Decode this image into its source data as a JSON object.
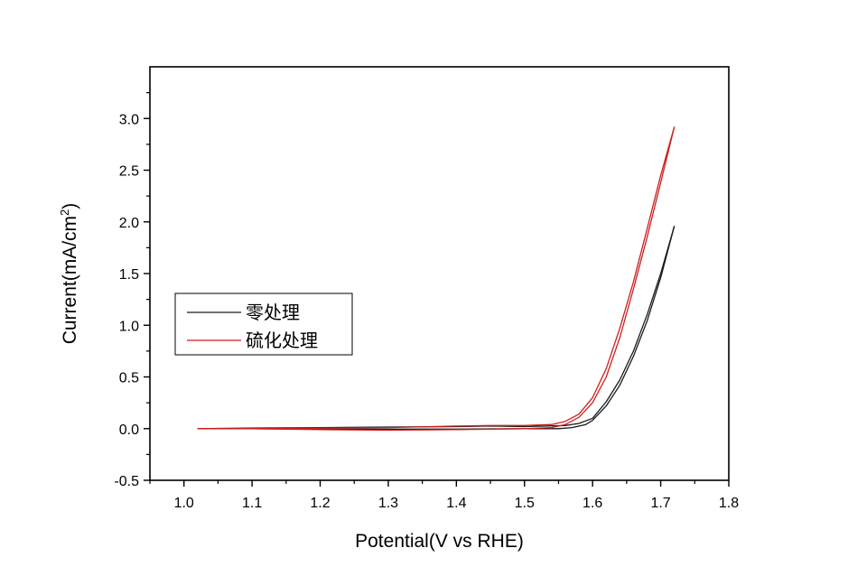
{
  "chart_data": {
    "type": "line",
    "title": "",
    "xlabel": "Potential(V vs RHE)",
    "ylabel": "Current(mA/cm",
    "ylabel_superscript": "2",
    "ylabel_suffix": ")",
    "xlim": [
      0.95,
      1.8
    ],
    "ylim": [
      -0.5,
      3.5
    ],
    "x_ticks": [
      1.0,
      1.1,
      1.2,
      1.3,
      1.4,
      1.5,
      1.6,
      1.7,
      1.8
    ],
    "x_tick_labels": [
      "1.0",
      "1.1",
      "1.2",
      "1.3",
      "1.4",
      "1.5",
      "1.6",
      "1.7",
      "1.8"
    ],
    "y_ticks": [
      -0.5,
      0.0,
      0.5,
      1.0,
      1.5,
      2.0,
      2.5,
      3.0
    ],
    "y_tick_labels": [
      "-0.5",
      "0.0",
      "0.5",
      "1.0",
      "1.5",
      "2.0",
      "2.5",
      "3.0"
    ],
    "grid": false,
    "legend_position": "middle-left",
    "series": [
      {
        "name": "零处理",
        "color": "#1a1a1a",
        "forward": {
          "x": [
            1.02,
            1.1,
            1.2,
            1.3,
            1.4,
            1.5,
            1.55,
            1.57,
            1.59,
            1.6,
            1.62,
            1.64,
            1.66,
            1.68,
            1.7,
            1.72
          ],
          "y": [
            0.0,
            0.0,
            -0.005,
            -0.005,
            -0.005,
            0.0,
            0.0,
            0.01,
            0.04,
            0.08,
            0.22,
            0.42,
            0.7,
            1.04,
            1.46,
            1.96
          ]
        },
        "reverse": {
          "x": [
            1.72,
            1.7,
            1.68,
            1.66,
            1.64,
            1.62,
            1.6,
            1.58,
            1.56,
            1.5,
            1.45,
            1.4,
            1.3,
            1.2,
            1.1,
            1.02
          ],
          "y": [
            1.96,
            1.5,
            1.1,
            0.75,
            0.47,
            0.26,
            0.1,
            0.05,
            0.03,
            0.02,
            0.025,
            0.02,
            0.015,
            0.01,
            0.005,
            0.0
          ]
        }
      },
      {
        "name": "硫化处理",
        "color": "#cc1f1f",
        "forward": {
          "x": [
            1.02,
            1.1,
            1.2,
            1.3,
            1.4,
            1.5,
            1.54,
            1.56,
            1.58,
            1.6,
            1.62,
            1.64,
            1.66,
            1.68,
            1.7,
            1.72
          ],
          "y": [
            0.0,
            0.0,
            -0.01,
            -0.015,
            -0.01,
            0.0,
            0.01,
            0.04,
            0.11,
            0.25,
            0.5,
            0.88,
            1.35,
            1.85,
            2.38,
            2.92
          ]
        },
        "reverse": {
          "x": [
            1.72,
            1.7,
            1.68,
            1.66,
            1.64,
            1.62,
            1.6,
            1.58,
            1.56,
            1.54,
            1.5,
            1.45,
            1.4,
            1.3,
            1.2,
            1.1,
            1.02
          ],
          "y": [
            2.92,
            2.45,
            1.93,
            1.42,
            0.97,
            0.58,
            0.3,
            0.14,
            0.07,
            0.04,
            0.03,
            0.03,
            0.025,
            0.01,
            0.005,
            0.0,
            0.0
          ]
        }
      }
    ]
  }
}
